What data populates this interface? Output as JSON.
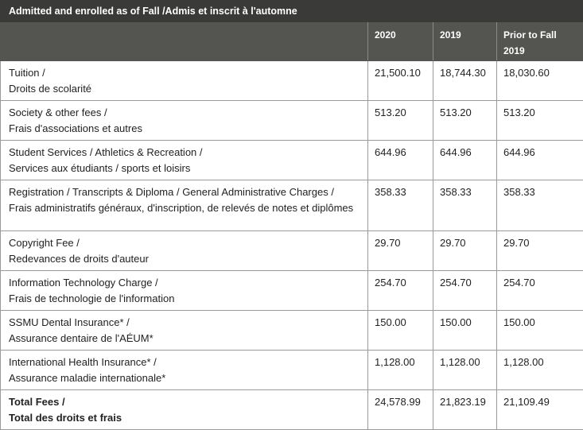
{
  "table": {
    "caption": "Admitted and enrolled as of Fall /Admis et inscrit à l'automne",
    "columns": [
      "",
      "2020",
      "2019",
      "Prior to Fall 2019"
    ],
    "rows": [
      {
        "label_en": "Tuition /",
        "label_fr": "Droits de scolarité",
        "v2020": "21,500.10",
        "v2019": "18,744.30",
        "vprior": "18,030.60"
      },
      {
        "label_en": "Society & other fees /",
        "label_fr": "Frais d'associations et autres",
        "v2020": "513.20",
        "v2019": "513.20",
        "vprior": "513.20"
      },
      {
        "label_en": "Student Services / Athletics & Recreation /",
        "label_fr": "Services aux étudiants / sports et loisirs",
        "v2020": "644.96",
        "v2019": "644.96",
        "vprior": "644.96"
      },
      {
        "label_en": "Registration / Transcripts & Diploma / General Administrative Charges /",
        "label_fr": "Frais administratifs généraux, d'inscription, de relevés de notes et diplômes",
        "v2020": "358.33",
        "v2019": "358.33",
        "vprior": "358.33"
      },
      {
        "label_en": "Copyright Fee /",
        "label_fr": "Redevances de droits d'auteur",
        "v2020": "29.70",
        "v2019": "29.70",
        "vprior": "29.70"
      },
      {
        "label_en": "Information Technology Charge /",
        "label_fr": "Frais de technologie de l'information",
        "v2020": "254.70",
        "v2019": "254.70",
        "vprior": "254.70"
      },
      {
        "label_en": "SSMU Dental Insurance* /",
        "label_fr": "Assurance dentaire de l'AÉUM*",
        "v2020": "150.00",
        "v2019": "150.00",
        "vprior": "150.00"
      },
      {
        "label_en": "International Health Insurance* /",
        "label_fr": "Assurance maladie internationale*",
        "v2020": "1,128.00",
        "v2019": "1,128.00",
        "vprior": "1,128.00"
      }
    ],
    "total": {
      "label_en": "Total Fees /",
      "label_fr": "Total des droits et frais",
      "v2020": "24,578.99",
      "v2019": "21,823.19",
      "vprior": "21,109.49"
    }
  }
}
